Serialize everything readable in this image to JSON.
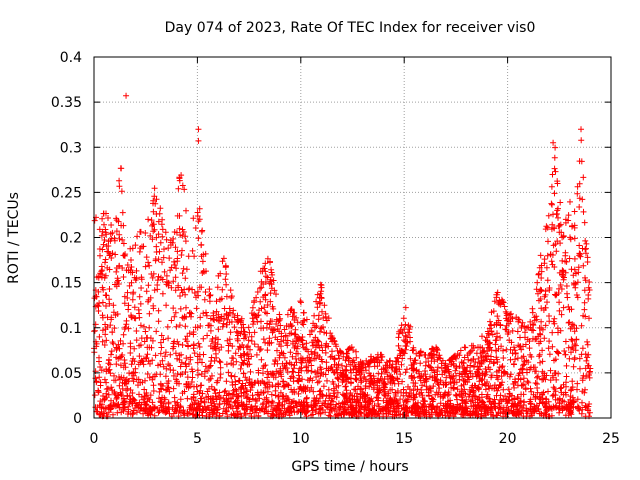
{
  "chart_data": {
    "type": "scatter",
    "title": "Day 074 of 2023, Rate Of TEC Index for receiver vis0",
    "xlabel": "GPS time / hours",
    "ylabel": "ROTI / TECUs",
    "xlim": [
      0,
      25
    ],
    "ylim": [
      0,
      0.4
    ],
    "xticks": [
      "0",
      "5",
      "10",
      "15",
      "20",
      "25"
    ],
    "yticks": [
      "0",
      "0.05",
      "0.1",
      "0.15",
      "0.2",
      "0.25",
      "0.3",
      "0.35",
      "0.4"
    ],
    "grid": true,
    "marker": "+",
    "series": [
      {
        "name": "ROTI",
        "color": "#ff0000",
        "note": "dense cloud of ~thousands of points from 0 to 24 h; envelope values listed",
        "envelope_x": [
          0,
          0.5,
          1.0,
          1.3,
          1.6,
          2.0,
          2.5,
          3.0,
          3.3,
          3.8,
          4.2,
          4.6,
          5.0,
          5.3,
          5.8,
          6.2,
          6.8,
          7.5,
          8.0,
          8.5,
          9.0,
          9.5,
          10.0,
          10.5,
          11.0,
          11.5,
          12.0,
          12.5,
          13.0,
          13.5,
          14.0,
          14.5,
          15.0,
          15.5,
          16.0,
          16.5,
          17.0,
          17.5,
          18.0,
          18.5,
          19.0,
          19.5,
          20.0,
          20.5,
          21.0,
          21.5,
          22.0,
          22.3,
          22.7,
          23.0,
          23.3,
          23.6,
          24.0
        ],
        "envelope_y": [
          0.22,
          0.24,
          0.2,
          0.29,
          0.18,
          0.2,
          0.22,
          0.26,
          0.22,
          0.2,
          0.29,
          0.2,
          0.25,
          0.2,
          0.12,
          0.19,
          0.12,
          0.1,
          0.16,
          0.18,
          0.11,
          0.12,
          0.13,
          0.1,
          0.16,
          0.09,
          0.07,
          0.08,
          0.06,
          0.07,
          0.07,
          0.06,
          0.13,
          0.08,
          0.07,
          0.08,
          0.06,
          0.07,
          0.08,
          0.08,
          0.1,
          0.14,
          0.12,
          0.11,
          0.1,
          0.17,
          0.23,
          0.3,
          0.2,
          0.25,
          0.23,
          0.32,
          0.13
        ],
        "outliers": [
          {
            "x": 1.55,
            "y": 0.357
          },
          {
            "x": 5.05,
            "y": 0.32
          },
          {
            "x": 5.05,
            "y": 0.307
          },
          {
            "x": 22.2,
            "y": 0.305
          },
          {
            "x": 23.55,
            "y": 0.32
          }
        ]
      }
    ]
  }
}
